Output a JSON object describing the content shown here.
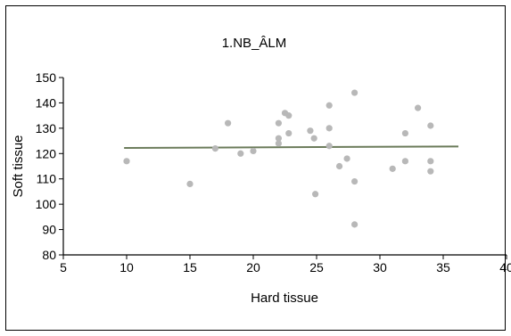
{
  "chart_data": {
    "type": "scatter",
    "title": "1.NB_ÂLM",
    "xlabel": "Hard tissue",
    "ylabel": "Soft tissue",
    "xlim": [
      5,
      40
    ],
    "ylim": [
      80,
      150
    ],
    "xticks": [
      5,
      10,
      15,
      20,
      25,
      30,
      35,
      40
    ],
    "yticks": [
      80,
      90,
      100,
      110,
      120,
      130,
      140,
      150
    ],
    "grid": false,
    "legend": "none",
    "point_color": "#b8b8b8",
    "line_color": "#6b7b5a",
    "points": [
      {
        "x": 10,
        "y": 117
      },
      {
        "x": 15,
        "y": 108
      },
      {
        "x": 17,
        "y": 122
      },
      {
        "x": 18,
        "y": 132
      },
      {
        "x": 19,
        "y": 120
      },
      {
        "x": 20,
        "y": 121
      },
      {
        "x": 22,
        "y": 132
      },
      {
        "x": 22,
        "y": 126
      },
      {
        "x": 22,
        "y": 124
      },
      {
        "x": 22.5,
        "y": 136
      },
      {
        "x": 22.8,
        "y": 135
      },
      {
        "x": 22.8,
        "y": 128
      },
      {
        "x": 24.5,
        "y": 129
      },
      {
        "x": 24.8,
        "y": 126
      },
      {
        "x": 24.9,
        "y": 104
      },
      {
        "x": 26,
        "y": 139
      },
      {
        "x": 26,
        "y": 130
      },
      {
        "x": 26,
        "y": 123
      },
      {
        "x": 26.8,
        "y": 115
      },
      {
        "x": 27.4,
        "y": 118
      },
      {
        "x": 28,
        "y": 144
      },
      {
        "x": 28,
        "y": 109
      },
      {
        "x": 28,
        "y": 92
      },
      {
        "x": 31,
        "y": 114
      },
      {
        "x": 32,
        "y": 128
      },
      {
        "x": 32,
        "y": 117
      },
      {
        "x": 33,
        "y": 138
      },
      {
        "x": 34,
        "y": 131
      },
      {
        "x": 34,
        "y": 117
      },
      {
        "x": 34,
        "y": 113
      }
    ],
    "trendline": {
      "x": [
        9.8,
        36.2
      ],
      "y": [
        122.2,
        122.8
      ]
    }
  }
}
